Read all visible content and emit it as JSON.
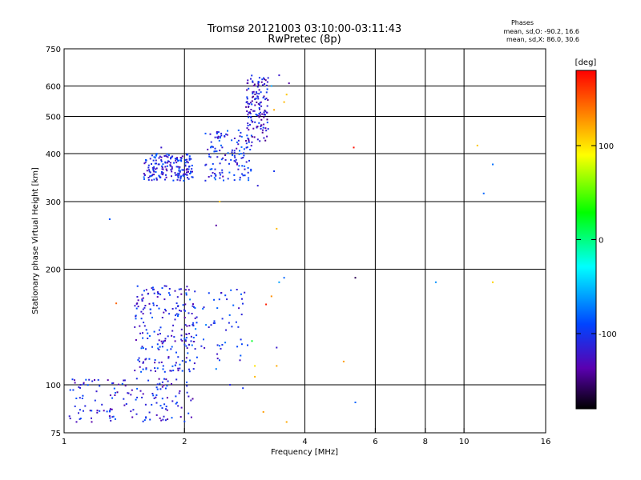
{
  "chart_data": {
    "type": "scatter",
    "title": "Tromsø 20121003 03:10:00-03:11:43",
    "subtitle": "RwPretec (8p)",
    "xlabel": "Frequency [MHz]",
    "ylabel": "Stationary phase Virtual Height [km]",
    "x_scale": "log",
    "y_scale": "log",
    "xlim": [
      1,
      16
    ],
    "ylim": [
      75,
      750
    ],
    "x_ticks": [
      1,
      2,
      4,
      6,
      8,
      10,
      16
    ],
    "x_tick_labels": [
      "1",
      "2",
      "4",
      "6",
      "8",
      "10",
      "16"
    ],
    "y_ticks": [
      75,
      100,
      200,
      300,
      400,
      500,
      600,
      750
    ],
    "y_tick_labels": [
      "75",
      "100",
      "200",
      "300",
      "400",
      "500",
      "600",
      "750"
    ],
    "x_grid": [
      2,
      4,
      6,
      8,
      10
    ],
    "y_grid": [
      100,
      200,
      300,
      400,
      500,
      600
    ],
    "stats": {
      "title": "Phases",
      "line1": "mean, sd,O: -90.2, 16.6",
      "line2": "mean, sd,X:  86.0, 30.6"
    },
    "colorbar": {
      "unit": "[deg]",
      "range": [
        -180,
        180
      ],
      "ticks": [
        100,
        0,
        -100
      ],
      "tick_labels": [
        "100",
        "0",
        "-100"
      ]
    },
    "clusters": [
      {
        "x": [
          1.58,
          2.1
        ],
        "y": [
          340,
          400
        ],
        "phase": -110,
        "count": 180
      },
      {
        "x": [
          2.25,
          2.95
        ],
        "y": [
          340,
          460
        ],
        "phase": -105,
        "count": 130
      },
      {
        "x": [
          2.85,
          3.25
        ],
        "y": [
          430,
          640
        ],
        "phase": -118,
        "count": 140
      },
      {
        "x": [
          1.5,
          2.15
        ],
        "y": [
          108,
          182
        ],
        "phase": -108,
        "count": 210
      },
      {
        "x": [
          2.0,
          2.9
        ],
        "y": [
          115,
          178
        ],
        "phase": -100,
        "count": 60
      },
      {
        "x": [
          1.03,
          2.1
        ],
        "y": [
          80,
          104
        ],
        "phase": -112,
        "count": 150
      }
    ],
    "points": [
      {
        "x": 1.75,
        "y": 415,
        "phase": -120
      },
      {
        "x": 1.3,
        "y": 270,
        "phase": -85
      },
      {
        "x": 2.4,
        "y": 260,
        "phase": -140
      },
      {
        "x": 2.45,
        "y": 300,
        "phase": 110
      },
      {
        "x": 3.35,
        "y": 360,
        "phase": -100
      },
      {
        "x": 3.4,
        "y": 255,
        "phase": 115
      },
      {
        "x": 3.35,
        "y": 520,
        "phase": 120
      },
      {
        "x": 3.55,
        "y": 545,
        "phase": 115
      },
      {
        "x": 3.6,
        "y": 570,
        "phase": 110
      },
      {
        "x": 3.65,
        "y": 610,
        "phase": -140
      },
      {
        "x": 3.3,
        "y": 600,
        "phase": -60
      },
      {
        "x": 3.45,
        "y": 640,
        "phase": -120
      },
      {
        "x": 3.05,
        "y": 330,
        "phase": -115
      },
      {
        "x": 5.3,
        "y": 415,
        "phase": 175
      },
      {
        "x": 5.35,
        "y": 190,
        "phase": -160
      },
      {
        "x": 5.35,
        "y": 90,
        "phase": -80
      },
      {
        "x": 5.0,
        "y": 115,
        "phase": 125
      },
      {
        "x": 8.5,
        "y": 185,
        "phase": -65
      },
      {
        "x": 10.8,
        "y": 420,
        "phase": 110
      },
      {
        "x": 11.2,
        "y": 315,
        "phase": -80
      },
      {
        "x": 11.8,
        "y": 375,
        "phase": -75
      },
      {
        "x": 11.8,
        "y": 185,
        "phase": 105
      },
      {
        "x": 1.35,
        "y": 163,
        "phase": 145
      },
      {
        "x": 3.2,
        "y": 162,
        "phase": 170
      },
      {
        "x": 3.3,
        "y": 170,
        "phase": 130
      },
      {
        "x": 3.45,
        "y": 185,
        "phase": -60
      },
      {
        "x": 3.55,
        "y": 190,
        "phase": -80
      },
      {
        "x": 3.0,
        "y": 105,
        "phase": 115
      },
      {
        "x": 3.0,
        "y": 112,
        "phase": 100
      },
      {
        "x": 3.4,
        "y": 112,
        "phase": 120
      },
      {
        "x": 3.15,
        "y": 85,
        "phase": 125
      },
      {
        "x": 3.6,
        "y": 80,
        "phase": 120
      },
      {
        "x": 3.4,
        "y": 125,
        "phase": -120
      },
      {
        "x": 2.95,
        "y": 130,
        "phase": 20
      },
      {
        "x": 2.4,
        "y": 110,
        "phase": -70
      },
      {
        "x": 2.6,
        "y": 100,
        "phase": -110
      },
      {
        "x": 2.8,
        "y": 98,
        "phase": -100
      }
    ]
  }
}
